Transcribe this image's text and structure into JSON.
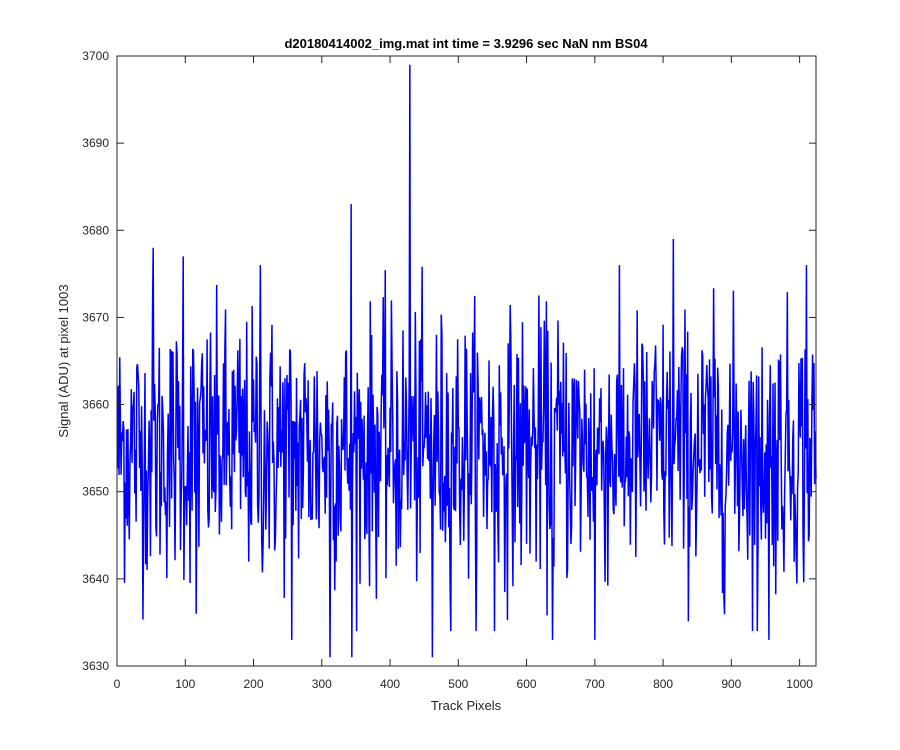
{
  "chart_data": {
    "type": "line",
    "title": "d20180414002_img.mat int time = 3.9296 sec  NaN nm BS04",
    "xlabel": "Track Pixels",
    "ylabel": "Signal (ADU) at pixel 1003",
    "xlim": [
      0,
      1024
    ],
    "ylim": [
      3630,
      3700
    ],
    "xticks": [
      0,
      100,
      200,
      300,
      400,
      500,
      600,
      700,
      800,
      900,
      1000
    ],
    "yticks": [
      3630,
      3640,
      3650,
      3660,
      3670,
      3680,
      3690,
      3700
    ],
    "grid": false,
    "series": [
      {
        "color": "#0000ff",
        "n_points": 1024,
        "x_start": 1,
        "noise_mean": 3655,
        "noise_std": 7.5,
        "spikes": [
          {
            "x": 53,
            "y": 3678
          },
          {
            "x": 97,
            "y": 3677
          },
          {
            "x": 116,
            "y": 3636
          },
          {
            "x": 210,
            "y": 3676
          },
          {
            "x": 256,
            "y": 3633
          },
          {
            "x": 312,
            "y": 3631
          },
          {
            "x": 343,
            "y": 3683
          },
          {
            "x": 344,
            "y": 3631
          },
          {
            "x": 429,
            "y": 3699
          },
          {
            "x": 462,
            "y": 3631
          },
          {
            "x": 553,
            "y": 3634
          },
          {
            "x": 638,
            "y": 3633
          },
          {
            "x": 700,
            "y": 3633
          },
          {
            "x": 815,
            "y": 3679
          },
          {
            "x": 938,
            "y": 3634
          },
          {
            "x": 955,
            "y": 3633
          },
          {
            "x": 1010,
            "y": 3676
          }
        ]
      }
    ]
  }
}
